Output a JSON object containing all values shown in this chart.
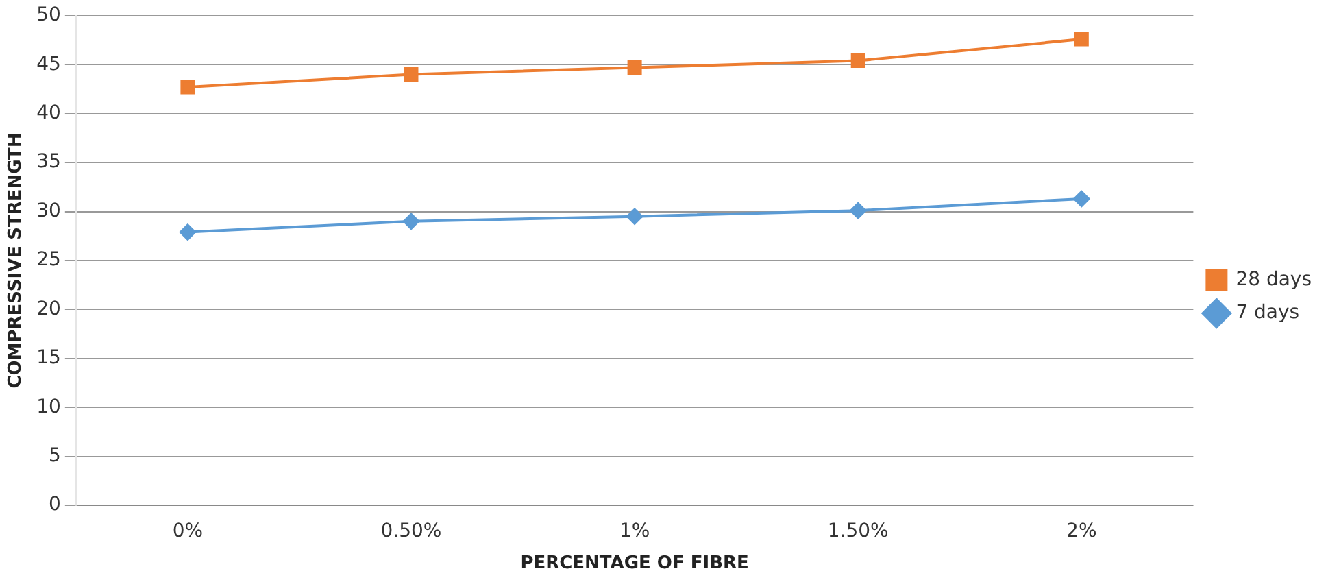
{
  "chart_data": {
    "type": "line",
    "xlabel": "PERCENTAGE OF FIBRE",
    "ylabel": "COMPRESSIVE STRENGTH",
    "categories": [
      "0%",
      "0.50%",
      "1%",
      "1.50%",
      "2%"
    ],
    "series": [
      {
        "name": "28 days",
        "color": "#ed7d31",
        "marker": "square",
        "values": [
          42.7,
          44,
          44.7,
          45.4,
          47.6
        ]
      },
      {
        "name": "7 days",
        "color": "#5b9bd5",
        "marker": "diamond",
        "values": [
          27.9,
          29,
          29.5,
          30.1,
          31.3
        ]
      }
    ],
    "ylim": [
      0,
      50
    ],
    "yticks": [
      0,
      5,
      10,
      15,
      20,
      25,
      30,
      35,
      40,
      45,
      50
    ],
    "grid": "y",
    "legend": "right"
  }
}
